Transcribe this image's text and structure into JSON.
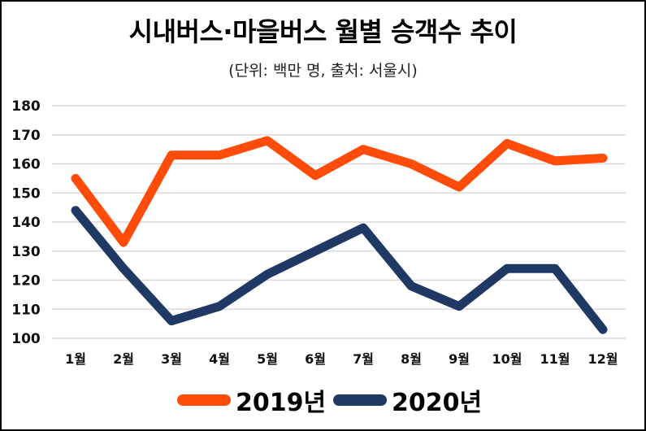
{
  "title": "시내버스·마을버스 월별 승객수 추이",
  "subtitle": "(단위: 백만 명, 출처: 서울시)",
  "colors": {
    "2019": "#FF4C0A",
    "2020": "#1F3864",
    "grid": "#D9D9D9"
  },
  "chart_data": {
    "type": "line",
    "title": "시내버스·마을버스 월별 승객수 추이",
    "subtitle": "(단위: 백만 명, 출처: 서울시)",
    "xlabel": "",
    "ylabel": "",
    "categories": [
      "1월",
      "2월",
      "3월",
      "4월",
      "5월",
      "6월",
      "7월",
      "8월",
      "9월",
      "10월",
      "11월",
      "12월"
    ],
    "yticks": [
      "100",
      "110",
      "120",
      "130",
      "140",
      "150",
      "160",
      "170",
      "180"
    ],
    "ylim": [
      100,
      180
    ],
    "grid": true,
    "legend_position": "bottom",
    "series": [
      {
        "name": "2019년",
        "values": [
          155,
          133,
          163,
          163,
          168,
          156,
          165,
          160,
          152,
          167,
          161,
          162
        ]
      },
      {
        "name": "2020년",
        "values": [
          144,
          124,
          106,
          111,
          122,
          130,
          138,
          118,
          111,
          124,
          124,
          103
        ]
      }
    ]
  }
}
